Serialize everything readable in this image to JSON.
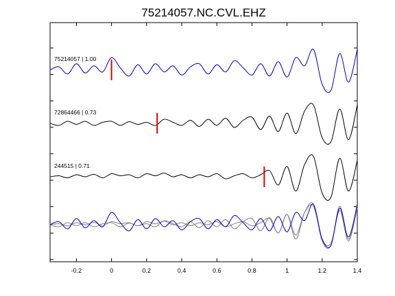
{
  "chart_data": {
    "type": "line",
    "title": "75214057.NC.CVL.EHZ",
    "xlabel": "",
    "ylabel": "",
    "xlim": [
      -0.35,
      1.4
    ],
    "xticks": [
      "-0.2",
      "0",
      "0.2",
      "0.4",
      "0.6",
      "0.8",
      "1",
      "1.2",
      "1.4"
    ],
    "xtick_values": [
      -0.2,
      0,
      0.2,
      0.4,
      0.6,
      0.8,
      1.0,
      1.2,
      1.4
    ],
    "grid": false,
    "series": [
      {
        "name": "75214057 | 1.00",
        "color": "#0000cc",
        "pick_time": 0.0,
        "x": [
          -0.35,
          -0.3,
          -0.25,
          -0.2,
          -0.15,
          -0.1,
          -0.05,
          0.0,
          0.05,
          0.1,
          0.15,
          0.2,
          0.25,
          0.3,
          0.35,
          0.4,
          0.45,
          0.5,
          0.55,
          0.6,
          0.65,
          0.7,
          0.75,
          0.8,
          0.85,
          0.9,
          0.95,
          1.0,
          1.05,
          1.1,
          1.15,
          1.2,
          1.25,
          1.3,
          1.35,
          1.4
        ],
        "y": [
          0.0,
          0.15,
          -0.2,
          0.3,
          -0.15,
          0.2,
          -0.1,
          0.6,
          0.1,
          -0.3,
          0.25,
          -0.2,
          0.3,
          -0.1,
          0.2,
          -0.25,
          0.15,
          0.3,
          -0.2,
          0.25,
          -0.1,
          0.45,
          0.1,
          -0.25,
          0.3,
          -0.3,
          0.4,
          -0.35,
          0.6,
          0.2,
          1.0,
          -0.7,
          -1.0,
          0.8,
          -0.6,
          1.0
        ]
      },
      {
        "name": "72864466 | 0.73",
        "color": "#000000",
        "pick_time": 0.26,
        "x": [
          -0.35,
          -0.3,
          -0.25,
          -0.2,
          -0.15,
          -0.1,
          -0.05,
          0.0,
          0.05,
          0.1,
          0.15,
          0.2,
          0.25,
          0.3,
          0.35,
          0.4,
          0.45,
          0.5,
          0.55,
          0.6,
          0.65,
          0.7,
          0.75,
          0.8,
          0.85,
          0.9,
          0.95,
          1.0,
          1.05,
          1.1,
          1.15,
          1.2,
          1.25,
          1.3,
          1.35,
          1.4
        ],
        "y": [
          0.0,
          -0.1,
          0.1,
          -0.05,
          0.1,
          -0.1,
          0.05,
          0.1,
          -0.1,
          0.08,
          -0.05,
          0.05,
          -0.1,
          0.2,
          0.05,
          -0.1,
          0.15,
          -0.15,
          0.2,
          -0.1,
          0.25,
          -0.2,
          0.15,
          0.3,
          -0.3,
          0.35,
          -0.4,
          0.5,
          -0.5,
          0.6,
          0.9,
          -0.7,
          -0.9,
          0.7,
          -0.8,
          0.9
        ]
      },
      {
        "name": "244515 | 0.71",
        "color": "#000000",
        "pick_time": 0.87,
        "x": [
          -0.35,
          -0.3,
          -0.25,
          -0.2,
          -0.15,
          -0.1,
          -0.05,
          0.0,
          0.05,
          0.1,
          0.15,
          0.2,
          0.25,
          0.3,
          0.35,
          0.4,
          0.45,
          0.5,
          0.55,
          0.6,
          0.65,
          0.7,
          0.75,
          0.8,
          0.85,
          0.9,
          0.95,
          1.0,
          1.05,
          1.1,
          1.15,
          1.2,
          1.25,
          1.3,
          1.35,
          1.4
        ],
        "y": [
          0.0,
          0.05,
          -0.05,
          0.1,
          0.0,
          0.12,
          -0.05,
          0.15,
          0.05,
          0.1,
          -0.05,
          0.15,
          0.05,
          0.18,
          0.0,
          0.1,
          -0.05,
          0.1,
          0.0,
          0.15,
          -0.1,
          0.05,
          0.15,
          -0.05,
          0.1,
          0.3,
          -0.4,
          0.5,
          -0.7,
          0.6,
          1.0,
          -0.8,
          -1.0,
          0.9,
          -0.7,
          0.8
        ]
      }
    ],
    "overlay_colors": [
      "#0000cc",
      "#808080",
      "#808080"
    ]
  }
}
